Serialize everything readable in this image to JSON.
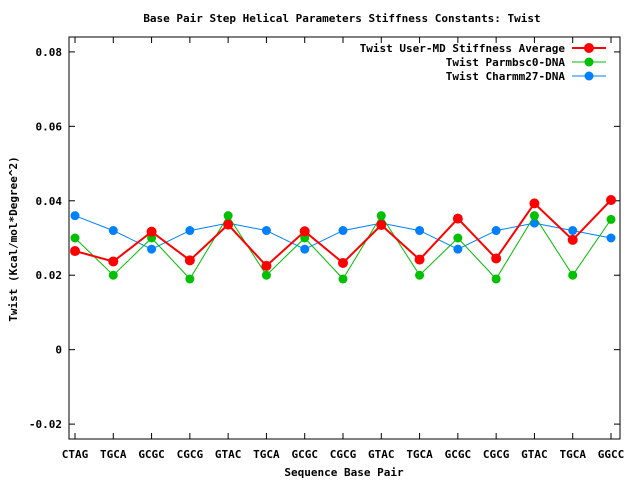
{
  "chart_data": {
    "type": "line",
    "title": "Base Pair Step Helical Parameters Stiffness Constants: Twist",
    "xlabel": "Sequence Base Pair",
    "ylabel": "Twist (Kcal/mol*Degree^2)",
    "ylim": [
      -0.024,
      0.084
    ],
    "yticks": [
      "0.08",
      "0.06",
      "0.04",
      "0.02",
      "0",
      "-0.02"
    ],
    "ytick_values": [
      0.08,
      0.06,
      0.04,
      0.02,
      0,
      -0.02
    ],
    "categories": [
      "CTAG",
      "TGCA",
      "GCGC",
      "CGCG",
      "GTAC",
      "TGCA",
      "GCGC",
      "CGCG",
      "GTAC",
      "TGCA",
      "GCGC",
      "CGCG",
      "GTAC",
      "TGCA",
      "GGCC"
    ],
    "legend_position": "top-right",
    "grid": false,
    "series": [
      {
        "name": "Twist User-MD Stiffness Average",
        "color": "#ff0000",
        "values": [
          0.0265,
          0.0237,
          0.0317,
          0.024,
          0.0336,
          0.0225,
          0.0318,
          0.0233,
          0.0335,
          0.0242,
          0.0352,
          0.0245,
          0.0393,
          0.0295,
          0.0402
        ]
      },
      {
        "name": "Twist Parmbsc0-DNA",
        "color": "#00c000",
        "values": [
          0.03,
          0.02,
          0.03,
          0.019,
          0.036,
          0.02,
          0.03,
          0.019,
          0.036,
          0.02,
          0.03,
          0.019,
          0.036,
          0.02,
          0.035
        ]
      },
      {
        "name": "Twist Charmm27-DNA",
        "color": "#0080ff",
        "values": [
          0.036,
          0.032,
          0.027,
          0.032,
          0.034,
          0.032,
          0.027,
          0.032,
          0.034,
          0.032,
          0.027,
          0.032,
          0.034,
          0.032,
          0.03
        ]
      }
    ]
  }
}
